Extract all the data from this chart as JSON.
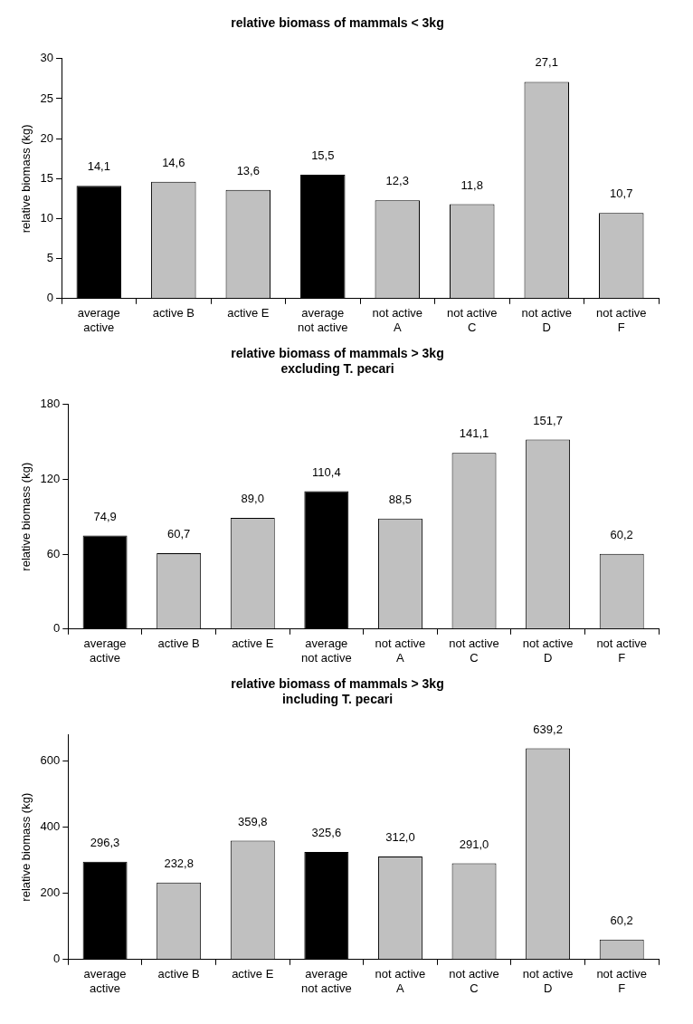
{
  "chart_data": [
    {
      "type": "bar",
      "title": "relative biomass of mammals < 3kg",
      "ylabel": "relative biomass (kg)",
      "categories": [
        "average active",
        "active B",
        "active E",
        "average not active",
        "not active A",
        "not active C",
        "not active D",
        "not active F"
      ],
      "values": [
        14.1,
        14.6,
        13.6,
        15.5,
        12.3,
        11.8,
        27.1,
        10.7
      ],
      "colors": [
        "#000000",
        "#c0c0c0",
        "#c0c0c0",
        "#000000",
        "#c0c0c0",
        "#c0c0c0",
        "#c0c0c0",
        "#c0c0c0"
      ],
      "value_labels": [
        "14,1",
        "14,6",
        "13,6",
        "15,5",
        "12,3",
        "11,8",
        "27,1",
        "10,7"
      ],
      "ylim": [
        0,
        30
      ],
      "yticks": [
        0,
        5,
        10,
        15,
        20,
        25,
        30
      ],
      "grid": false,
      "legend": false
    },
    {
      "type": "bar",
      "title": "relative biomass of mammals > 3kg",
      "subtitle": "excluding T. pecari",
      "ylabel": "relative biomass (kg)",
      "categories": [
        "average active",
        "active B",
        "active E",
        "average not active",
        "not active A",
        "not active C",
        "not active D",
        "not active F"
      ],
      "values": [
        74.9,
        60.7,
        89.0,
        110.4,
        88.5,
        141.1,
        151.7,
        60.2
      ],
      "colors": [
        "#000000",
        "#c0c0c0",
        "#c0c0c0",
        "#000000",
        "#c0c0c0",
        "#c0c0c0",
        "#c0c0c0",
        "#c0c0c0"
      ],
      "value_labels": [
        "74,9",
        "60,7",
        "89,0",
        "110,4",
        "88,5",
        "141,1",
        "151,7",
        "60,2"
      ],
      "ylim": [
        0,
        180
      ],
      "yticks": [
        0,
        60,
        120,
        180
      ],
      "grid": false,
      "legend": false
    },
    {
      "type": "bar",
      "title": "relative biomass of mammals > 3kg",
      "subtitle": "including T. pecari",
      "ylabel": "relative biomass (kg)",
      "categories": [
        "average active",
        "active B",
        "active E",
        "average not active",
        "not active A",
        "not active C",
        "not active D",
        "not active F"
      ],
      "values": [
        296.3,
        232.8,
        359.8,
        325.6,
        312.0,
        291.0,
        639.2,
        60.2
      ],
      "colors": [
        "#000000",
        "#c0c0c0",
        "#c0c0c0",
        "#000000",
        "#c0c0c0",
        "#c0c0c0",
        "#c0c0c0",
        "#c0c0c0"
      ],
      "value_labels": [
        "296,3",
        "232,8",
        "359,8",
        "325,6",
        "312,0",
        "291,0",
        "639,2",
        "60,2"
      ],
      "ylim": [
        0,
        680
      ],
      "yticks": [
        0,
        200,
        400,
        600
      ],
      "grid": false,
      "legend": false
    }
  ]
}
